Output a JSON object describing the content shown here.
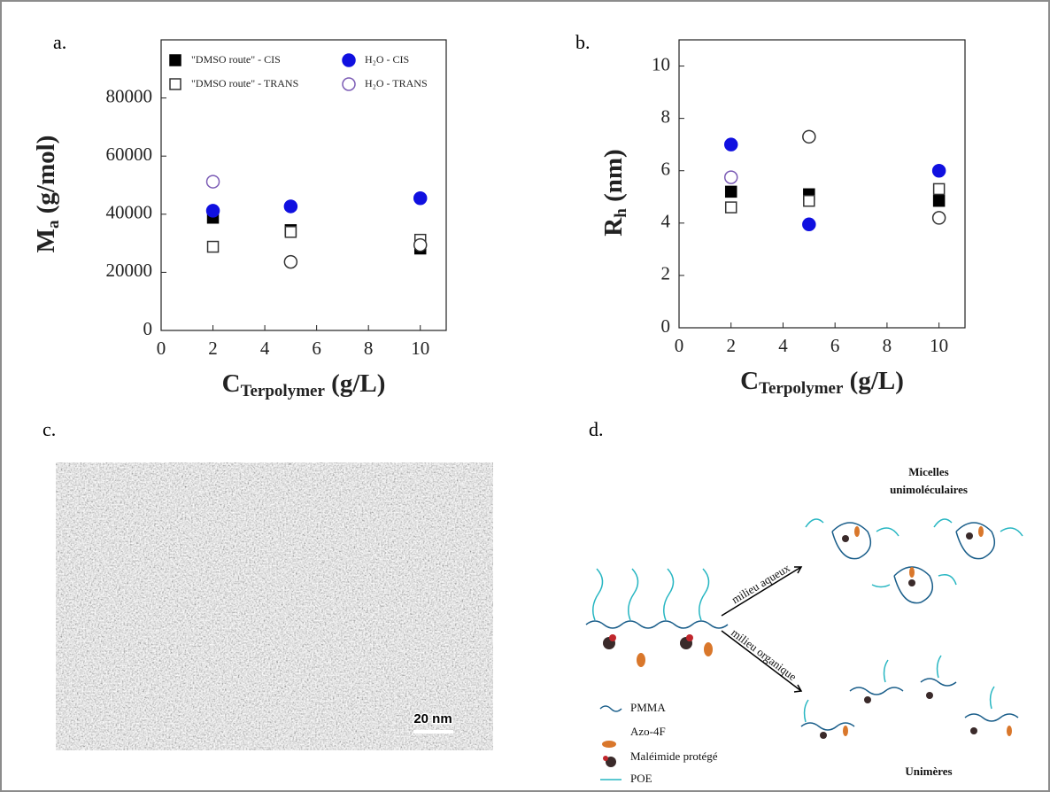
{
  "chart_data": [
    {
      "type": "scatter",
      "panel": "a.",
      "ylabel": "M",
      "ylabel_sub": "a",
      "ylabel_rest": " (g/mol)",
      "xlabel": "C",
      "xlabel_sub": "Terpolymer",
      "xlabel_rest": " (g/L)",
      "x": [
        2,
        5,
        10
      ],
      "xlim": [
        0,
        11
      ],
      "xticks": [
        0,
        2,
        4,
        6,
        8,
        10
      ],
      "ylim": [
        0,
        100000
      ],
      "yticks": [
        0,
        20000,
        40000,
        60000,
        80000
      ],
      "legend": "upper left",
      "series": [
        {
          "name": "\"DMSO route\" - CIS",
          "color": "#000000",
          "marker": "square",
          "filled": true,
          "values": [
            38800,
            34500,
            28200
          ]
        },
        {
          "name": "\"DMSO route\" - TRANS",
          "color": "#333333",
          "marker": "square",
          "filled": false,
          "values": [
            28800,
            33900,
            31200
          ]
        },
        {
          "name": "H₂O - CIS",
          "color": "#1010e0",
          "marker": "circle",
          "filled": true,
          "values": [
            41200,
            42700,
            45500
          ]
        },
        {
          "name": "H₂O - TRANS",
          "color": "#7b5bb5",
          "marker": "circle",
          "filled": false,
          "values": [
            51200,
            23600,
            29400
          ],
          "colors": [
            "#7b5bb5",
            "#333333",
            "#333333"
          ]
        }
      ]
    },
    {
      "type": "scatter",
      "panel": "b.",
      "ylabel": "R",
      "ylabel_sub": "h",
      "ylabel_rest": " (nm)",
      "xlabel": "C",
      "xlabel_sub": "Terpolymer",
      "xlabel_rest": " (g/L)",
      "x": [
        2,
        5,
        10
      ],
      "xlim": [
        0,
        11
      ],
      "xticks": [
        0,
        2,
        4,
        6,
        8,
        10
      ],
      "ylim": [
        0,
        11
      ],
      "yticks": [
        0,
        2,
        4,
        6,
        8,
        10
      ],
      "series": [
        {
          "color": "#000000",
          "marker": "square",
          "filled": true,
          "values": [
            5.2,
            5.1,
            4.85
          ]
        },
        {
          "color": "#333333",
          "marker": "square",
          "filled": false,
          "values": [
            4.6,
            4.85,
            5.3
          ]
        },
        {
          "color": "#1010e0",
          "marker": "circle",
          "filled": true,
          "values": [
            7.0,
            3.95,
            6.0
          ]
        },
        {
          "color": "#7b5bb5",
          "marker": "circle",
          "filled": false,
          "values": [
            5.75,
            7.3,
            4.2
          ],
          "colors": [
            "#7b5bb5",
            "#333333",
            "#333333"
          ]
        }
      ]
    }
  ],
  "image": {
    "panel": "c.",
    "scale_bar": "20 nm"
  },
  "diagram": {
    "panel": "d.",
    "micelles": "Micelles",
    "micelles_sub": "unimoléculaires",
    "aqueous": "milieu aqueux",
    "organic": "milieu organique",
    "unimers": "Unimères",
    "legend": [
      "PMMA",
      "Azo-4F",
      "Maléimide protégé",
      "POE"
    ]
  }
}
